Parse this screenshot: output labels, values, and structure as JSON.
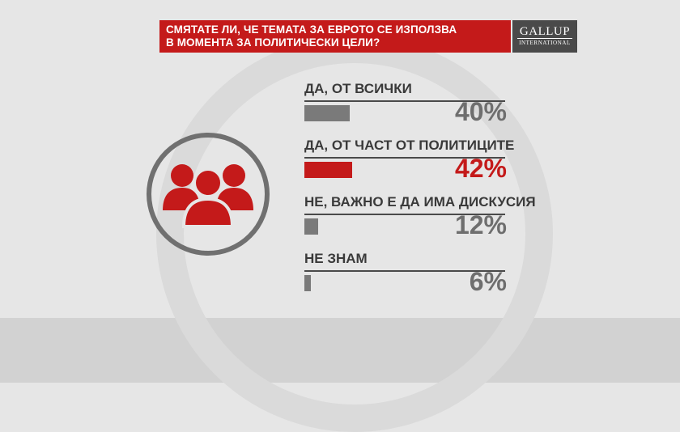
{
  "title": {
    "line1": "СМЯТАТЕ ЛИ, ЧЕ ТЕМАТА ЗА ЕВРОТО СЕ ИЗПОЛЗВА",
    "line2": "В МОМЕНТА ЗА ПОЛИТИЧЕСКИ ЦЕЛИ?"
  },
  "logo": {
    "main": "GALLUP",
    "sub": "INTERNATIONAL"
  },
  "icon": "people-group-icon",
  "colors": {
    "accent": "#c41a1a",
    "neutral": "#7a7a7a",
    "value_gray": "#6e6e6e"
  },
  "chart_data": {
    "type": "bar",
    "orientation": "horizontal",
    "categories": [
      "ДА, ОТ ВСИЧКИ",
      "ДА, ОТ ЧАСТ ОТ ПОЛИТИЦИТЕ",
      "НЕ, ВАЖНО Е ДА ИМА ДИСКУСИЯ",
      "НЕ ЗНАМ"
    ],
    "values": [
      40,
      42,
      12,
      6
    ],
    "value_labels": [
      "40%",
      "42%",
      "12%",
      "6%"
    ],
    "highlight_index": 1,
    "xlim": [
      0,
      100
    ]
  }
}
